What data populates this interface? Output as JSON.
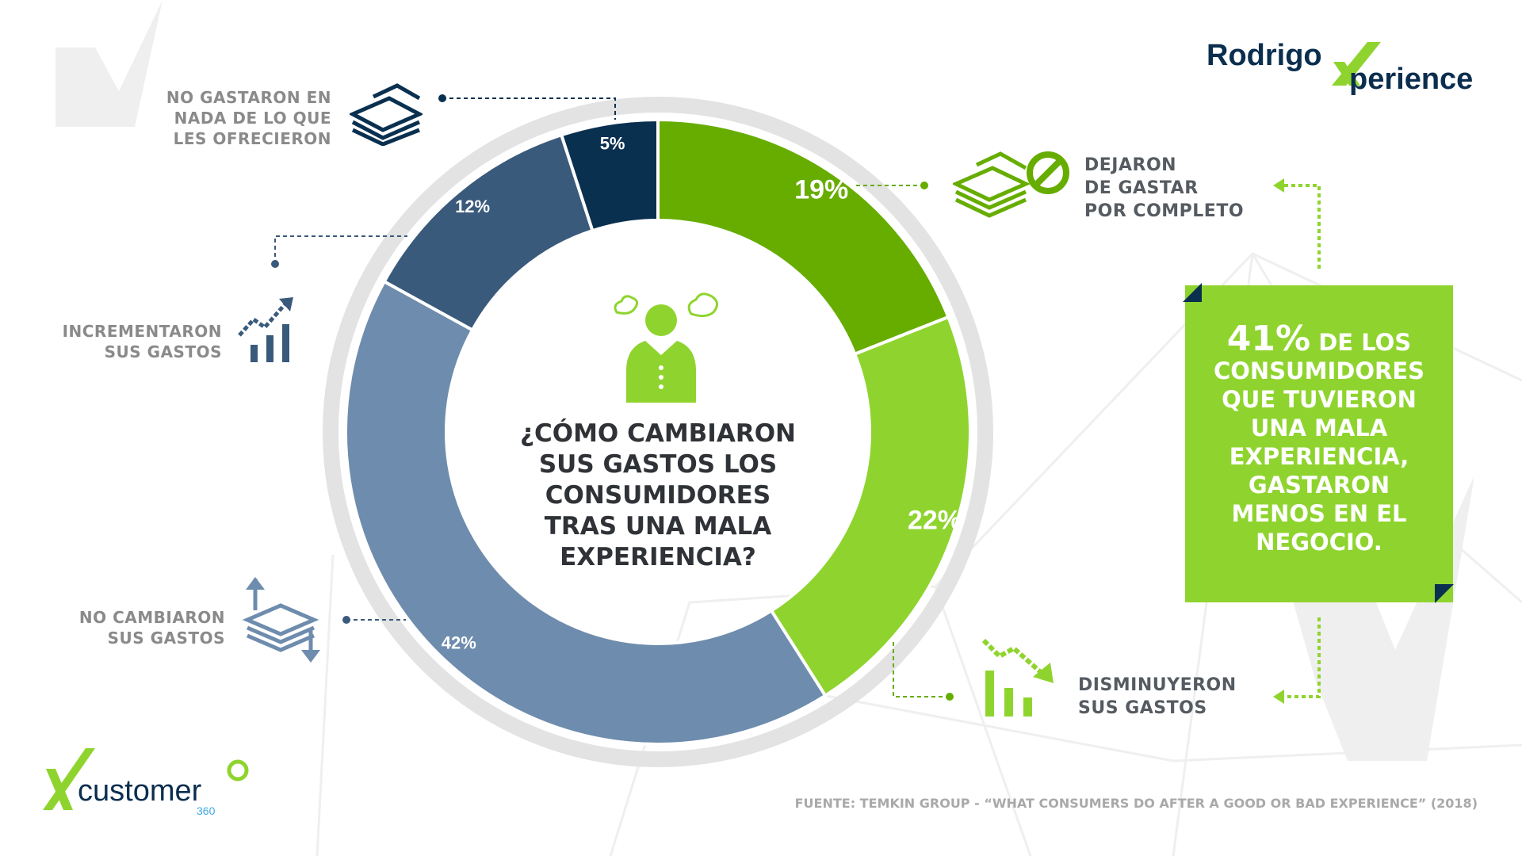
{
  "brand": {
    "logo_text_top": "Rodrigo",
    "logo_text_bottom": "perience",
    "partner_logo": "customer",
    "partner_logo_sub": "360"
  },
  "title": "¿CÓMO CAMBIARON SUS GASTOS LOS CONSUMIDORES TRAS UNA MALA EXPERIENCIA?",
  "title_lines": [
    "¿CÓMO CAMBIARON",
    "SUS GASTOS LOS",
    "CONSUMIDORES",
    "TRAS UNA MALA",
    "EXPERIENCIA?"
  ],
  "labels": {
    "no_gastaron": [
      "NO GASTARON EN",
      "NADA DE LO QUE",
      "LES OFRECIERON"
    ],
    "incrementaron": [
      "INCREMENTARON",
      "SUS GASTOS"
    ],
    "no_cambiaron": [
      "NO CAMBIARON",
      "SUS GASTOS"
    ],
    "dejaron": [
      "DEJARON",
      "DE GASTAR",
      "POR COMPLETO"
    ],
    "disminuyeron": [
      "DISMINUYERON",
      "SUS GASTOS"
    ]
  },
  "callout": {
    "highlight": "41%",
    "lines": [
      " DE LOS",
      "CONSUMIDORES",
      "QUE TUVIERON",
      "UNA MALA",
      "EXPERIENCIA,",
      "GASTARON",
      "MENOS EN EL",
      "NEGOCIO."
    ]
  },
  "source": "FUENTE: TEMKIN GROUP - “WHAT CONSUMERS DO AFTER A GOOD OR BAD EXPERIENCE” (2018)",
  "colors": {
    "green_dark": "#66ad00",
    "green_light": "#8fd42e",
    "steel_blue": "#6e8cad",
    "blue": "#3a5a7c",
    "navy": "#0a3050",
    "ring": "#e3e3e3"
  },
  "chart_data": {
    "type": "pie",
    "variant": "donut",
    "title": "¿CÓMO CAMBIARON SUS GASTOS LOS CONSUMIDORES TRAS UNA MALA EXPERIENCIA?",
    "categories": [
      "DEJARON DE GASTAR POR COMPLETO",
      "DISMINUYERON SUS GASTOS",
      "NO CAMBIARON SUS GASTOS",
      "INCREMENTARON SUS GASTOS",
      "NO GASTARON EN NADA DE LO QUE LES OFRECIERON"
    ],
    "values": [
      19,
      22,
      42,
      12,
      5
    ],
    "data_labels": [
      "19%",
      "22%",
      "42%",
      "12%",
      "5%"
    ],
    "colors": [
      "#66ad00",
      "#8fd42e",
      "#6e8cad",
      "#3a5a7c",
      "#0a3050"
    ],
    "unit": "%"
  }
}
